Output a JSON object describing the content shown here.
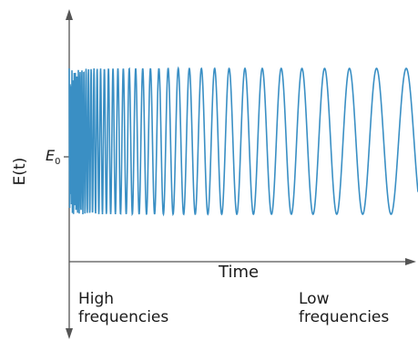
{
  "chart_data": {
    "type": "line",
    "title": "",
    "xlabel": "Time",
    "ylabel": "E(t)",
    "y_tick_labels": [
      {
        "main": "E",
        "sub": "0"
      }
    ],
    "annotations": [
      "High\nfrequencies",
      "Low\nfrequencies"
    ],
    "description_of_signal": "chirp signal oscillating about E0 with frequency decreasing over time",
    "series": [
      {
        "style": "line",
        "color": "#3a8fc4",
        "x": [
          0,
          0.05,
          0.1,
          0.15,
          0.2,
          0.3,
          0.4,
          0.5,
          0.6,
          0.7,
          0.8,
          0.9,
          1.0
        ],
        "y_offset_amplitude": [
          1,
          1,
          1,
          1,
          1,
          1,
          1,
          1,
          1,
          1,
          1,
          1,
          1
        ]
      }
    ],
    "grid": false,
    "legend": "none"
  }
}
